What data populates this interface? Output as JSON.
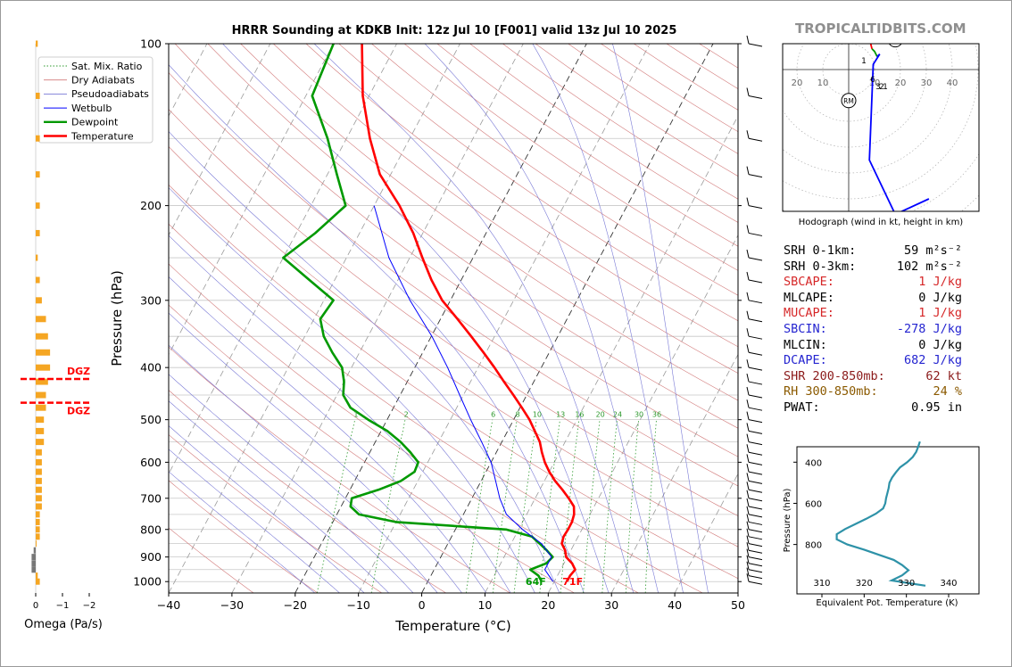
{
  "page": {
    "title": "HRRR Sounding at KDKB Init: 12z Jul 10 [F001] valid 13z Jul 10 2025",
    "watermark": "TROPICALTIDBITS.COM"
  },
  "chart_data": [
    {
      "type": "skew-t",
      "title": "HRRR Sounding at KDKB Init: 12z Jul 10 [F001] valid 13z Jul 10 2025",
      "xlabel": "Temperature (°C)",
      "ylabel": "Pressure (hPa)",
      "xlim": [
        -40,
        50
      ],
      "ylim": [
        1050,
        100
      ],
      "y_scale": "log",
      "x_ticks": [
        -40,
        -30,
        -20,
        -10,
        0,
        10,
        20,
        30,
        40,
        50
      ],
      "y_ticks": [
        100,
        200,
        300,
        400,
        500,
        600,
        700,
        800,
        900,
        1000
      ],
      "legend_position": "top-left",
      "legend": [
        "Sat. Mix. Ratio",
        "Dry Adiabats",
        "Pseudoadiabats",
        "Wetbulb",
        "Dewpoint",
        "Temperature"
      ],
      "colors": {
        "temperature": "#ff0000",
        "dewpoint": "#009900",
        "wetbulb": "#0000ff",
        "dry_adiabat": "#d27a7a",
        "pseudoadiabat": "#7a7ad6",
        "mixing_ratio": "#2e9a2e",
        "isotherm": "#9a9a9a"
      },
      "mixing_ratio_labels": [
        "1",
        "2",
        "6",
        "8",
        "10",
        "13",
        "16",
        "20",
        "24",
        "30",
        "36"
      ],
      "surface_labels": {
        "dewpoint": "64F",
        "temperature": "71F"
      },
      "series": [
        {
          "name": "Temperature",
          "pressure": [
            1000,
            975,
            950,
            925,
            900,
            875,
            850,
            825,
            800,
            775,
            750,
            725,
            700,
            675,
            650,
            625,
            600,
            575,
            550,
            525,
            500,
            475,
            450,
            425,
            400,
            375,
            350,
            325,
            300,
            275,
            250,
            225,
            200,
            175,
            150,
            125,
            100
          ],
          "values": [
            22,
            22,
            22.3,
            21.3,
            19.8,
            19.1,
            18,
            17.7,
            17.8,
            17.8,
            17.5,
            16.8,
            15.3,
            13.6,
            11.7,
            10,
            8.5,
            7.2,
            6,
            4.3,
            2.5,
            0.3,
            -2.1,
            -4.7,
            -7.4,
            -10.4,
            -13.7,
            -17.3,
            -21.3,
            -24.7,
            -28,
            -31.5,
            -36,
            -41.7,
            -46.3,
            -51,
            -55.5
          ]
        },
        {
          "name": "Dewpoint",
          "pressure": [
            1000,
            975,
            950,
            925,
            900,
            875,
            850,
            825,
            800,
            775,
            750,
            725,
            700,
            675,
            650,
            625,
            600,
            575,
            550,
            525,
            500,
            475,
            450,
            425,
            400,
            375,
            350,
            325,
            300,
            275,
            250,
            225,
            200,
            175,
            150,
            125,
            100
          ],
          "values": [
            18,
            17,
            15.2,
            17.2,
            17.7,
            16.2,
            14.5,
            12.7,
            8,
            -10,
            -16.5,
            -18.5,
            -19,
            -15.5,
            -12.7,
            -11.3,
            -11.5,
            -13.6,
            -16,
            -19,
            -23,
            -26.8,
            -29,
            -30,
            -31.5,
            -34.3,
            -37,
            -39,
            -38.5,
            -44,
            -50,
            -47,
            -44.5,
            -48.5,
            -53,
            -59,
            -60
          ]
        },
        {
          "name": "Wetbulb",
          "pressure": [
            1000,
            950,
            900,
            850,
            800,
            750,
            700,
            650,
            600,
            550,
            500,
            450,
            400,
            350,
            300,
            250,
            200
          ],
          "values": [
            19.8,
            17.5,
            17.5,
            14.8,
            10.6,
            6.8,
            4.4,
            2.3,
            0,
            -3.2,
            -6.8,
            -10.6,
            -14.8,
            -19.9,
            -26.4,
            -33.3,
            -40
          ]
        }
      ]
    },
    {
      "type": "bar",
      "title": "Omega",
      "xlabel": "Omega (Pa/s)",
      "x_ticks": [
        "0",
        "−1",
        "−2"
      ],
      "bar_color": "#f5a623",
      "markers": {
        "label": "DGZ",
        "pressures": [
          420,
          465
        ],
        "color": "#ff0000"
      },
      "pressure": [
        1000,
        975,
        950,
        925,
        900,
        875,
        850,
        825,
        800,
        775,
        750,
        725,
        700,
        675,
        650,
        625,
        600,
        575,
        550,
        525,
        500,
        475,
        450,
        425,
        400,
        375,
        350,
        325,
        300,
        275,
        250,
        225,
        200,
        175,
        150,
        125,
        100
      ],
      "values": [
        0.02,
        0.01,
        -0.02,
        -0.02,
        -0.02,
        -0.01,
        0,
        0.02,
        0.02,
        0.02,
        0.02,
        0.03,
        0.03,
        0.03,
        0.03,
        0.03,
        0.03,
        0.03,
        0.04,
        0.04,
        0.04,
        0.05,
        0.05,
        0.06,
        0.07,
        0.07,
        0.06,
        0.05,
        0.03,
        0.02,
        0.01,
        0.02,
        0.02,
        0.02,
        0.02,
        0.02,
        0.01
      ]
    },
    {
      "type": "hodograph",
      "caption": "Hodograph (wind in kt, height in km)",
      "ring_labels": [
        "20",
        "10",
        "10",
        "20",
        "30",
        "40"
      ],
      "markers": [
        "LM",
        "RM"
      ],
      "height_labels": [
        "1",
        "6",
        "3",
        "2",
        "1"
      ],
      "segments": [
        {
          "color": "#ff0000",
          "points": [
            [
              -0.8,
              23
            ],
            [
              -1.5,
              21
            ],
            [
              -1.2,
              19
            ],
            [
              2.5,
              21
            ],
            [
              5.5,
              20.5
            ],
            [
              6,
              16
            ],
            [
              8,
              12
            ],
            [
              9,
              8
            ]
          ]
        },
        {
          "color": "#009900",
          "points": [
            [
              9,
              8
            ],
            [
              10,
              7
            ],
            [
              11,
              5
            ]
          ]
        },
        {
          "color": "#0000ff",
          "points": [
            [
              11,
              5
            ],
            [
              12,
              6
            ],
            [
              9.5,
              2
            ],
            [
              8,
              -35
            ],
            [
              18,
              -56
            ],
            [
              31,
              -50
            ]
          ]
        }
      ],
      "marker_points": {
        "LM": [
          18,
          11.5
        ],
        "RM": [
          0,
          -12
        ]
      }
    },
    {
      "type": "line",
      "xlabel": "Equivalent Pot. Temperature (K)",
      "ylabel": "Pressure (hPa)",
      "x_ticks": [
        310,
        320,
        330,
        340
      ],
      "y_ticks": [
        400,
        600,
        800
      ],
      "color": "#2e92a8",
      "pressure": [
        1000,
        975,
        950,
        925,
        900,
        875,
        850,
        825,
        800,
        775,
        750,
        725,
        700,
        675,
        650,
        625,
        600,
        575,
        550,
        525,
        500,
        475,
        450,
        425,
        400,
        375,
        350,
        325,
        300
      ],
      "values": [
        334.5,
        326.5,
        329,
        330.5,
        329,
        327,
        323.5,
        320,
        316,
        313.5,
        313.5,
        315.5,
        318,
        320.5,
        322.8,
        324.5,
        325,
        325.2,
        325.5,
        325.8,
        326,
        326.6,
        327.5,
        328.5,
        330.2,
        331.5,
        332.3,
        332.8,
        333.2
      ]
    }
  ],
  "indices": [
    {
      "label": "SRH 0-1km:",
      "value": "59 m²s⁻²",
      "color": "#000000"
    },
    {
      "label": "SRH 0-3km:",
      "value": "102 m²s⁻²",
      "color": "#000000"
    },
    {
      "label": "SBCAPE:",
      "value": "1 J/kg",
      "color": "#d62728"
    },
    {
      "label": "MLCAPE:",
      "value": "0 J/kg",
      "color": "#000000"
    },
    {
      "label": "MUCAPE:",
      "value": "1 J/kg",
      "color": "#d62728"
    },
    {
      "label": "SBCIN:",
      "value": "-278 J/kg",
      "color": "#2424d0"
    },
    {
      "label": "MLCIN:",
      "value": "0 J/kg",
      "color": "#000000"
    },
    {
      "label": "DCAPE:",
      "value": "682 J/kg",
      "color": "#2424d0"
    },
    {
      "label": "SHR 200-850mb:",
      "value": "62 kt",
      "color": "#8b1a1a"
    },
    {
      "label": "RH 300-850mb:",
      "value": "24 %",
      "color": "#8b5a00"
    },
    {
      "label": "PWAT:",
      "value": "0.95 in",
      "color": "#000000"
    }
  ]
}
